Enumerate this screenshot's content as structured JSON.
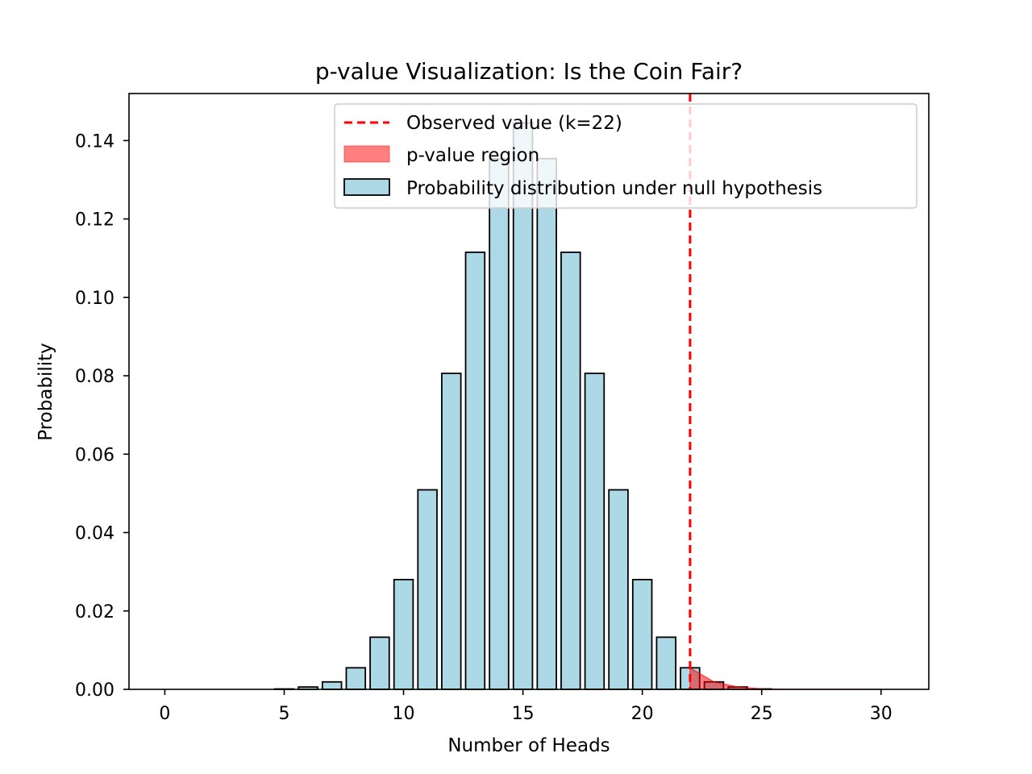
{
  "chart_data": {
    "type": "bar",
    "title": "p-value Visualization: Is the Coin Fair?",
    "xlabel": "Number of Heads",
    "ylabel": "Probability",
    "xlim": [
      -1.5,
      32.0
    ],
    "ylim": [
      0,
      0.152
    ],
    "xticks": [
      0,
      5,
      10,
      15,
      20,
      25,
      30
    ],
    "yticks": [
      0.0,
      0.02,
      0.04,
      0.06,
      0.08,
      0.1,
      0.12,
      0.14
    ],
    "ytick_labels": [
      "0.00",
      "0.02",
      "0.04",
      "0.06",
      "0.08",
      "0.10",
      "0.12",
      "0.14"
    ],
    "grid": false,
    "legend_position": "top-right",
    "x": [
      0,
      1,
      2,
      3,
      4,
      5,
      6,
      7,
      8,
      9,
      10,
      11,
      12,
      13,
      14,
      15,
      16,
      17,
      18,
      19,
      20,
      21,
      22,
      23,
      24,
      25,
      26,
      27,
      28,
      29,
      30
    ],
    "values": [
      0.0,
      0.0,
      0.0,
      0.0,
      0.0,
      0.0001,
      0.0006,
      0.0019,
      0.0055,
      0.0133,
      0.028,
      0.0509,
      0.0806,
      0.1115,
      0.1354,
      0.1445,
      0.1354,
      0.1115,
      0.0806,
      0.0509,
      0.028,
      0.0133,
      0.0055,
      0.0019,
      0.0006,
      0.0001,
      0.0,
      0.0,
      0.0,
      0.0,
      0.0
    ],
    "series": [
      {
        "name": "Probability distribution under null hypothesis",
        "kind": "bar",
        "color": "#add8e6",
        "edge_color": "#000000"
      }
    ],
    "observed": {
      "name": "Observed value (k=22)",
      "x": 22,
      "color": "#ff0000",
      "style": "dashed"
    },
    "pvalue_region": {
      "name": "p-value region",
      "x_from": 22,
      "x_to": 30,
      "color": "#ff0000",
      "alpha": 0.5
    }
  }
}
